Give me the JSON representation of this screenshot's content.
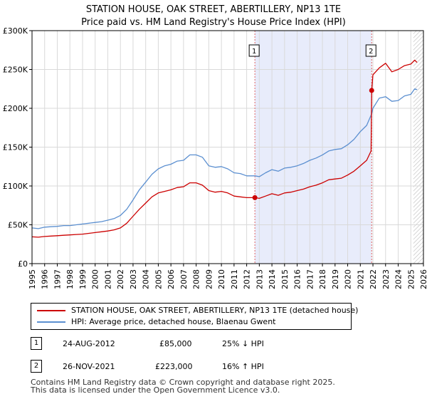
{
  "title_line1": "STATION HOUSE, OAK STREET, ABERTILLERY, NP13 1TE",
  "title_line2": "Price paid vs. HM Land Registry's House Price Index (HPI)",
  "colors": {
    "property": "#cc0000",
    "hpi": "#5b8fd0",
    "shade": "#e8ecfb",
    "grid": "#d9d9d9",
    "marker_line": "#e06666"
  },
  "chart_data": {
    "type": "line",
    "title": "Price paid vs. HM Land Registry's House Price Index (HPI)",
    "xlabel": "",
    "ylabel": "",
    "xlim": [
      1995,
      2026
    ],
    "ylim": [
      0,
      300000
    ],
    "y_ticks": [
      0,
      50000,
      100000,
      150000,
      200000,
      250000,
      300000
    ],
    "y_tick_labels": [
      "£0",
      "£50K",
      "£100K",
      "£150K",
      "£200K",
      "£250K",
      "£300K"
    ],
    "x_ticks": [
      "1995",
      "1996",
      "1997",
      "1998",
      "1999",
      "2000",
      "2001",
      "2002",
      "2003",
      "2004",
      "2005",
      "2006",
      "2007",
      "2008",
      "2009",
      "2010",
      "2011",
      "2012",
      "2013",
      "2014",
      "2015",
      "2016",
      "2017",
      "2018",
      "2019",
      "2020",
      "2021",
      "2022",
      "2023",
      "2024",
      "2025",
      "2026"
    ],
    "grid": true,
    "shaded_range": [
      2012.65,
      2021.9
    ],
    "hatched_from": 2025.2,
    "series": [
      {
        "name": "HPI: Average price, detached house, Blaenau Gwent",
        "x": [
          1995.0,
          1995.5,
          1996.0,
          1996.5,
          1997.0,
          1997.5,
          1998.0,
          1998.5,
          1999.0,
          1999.5,
          2000.0,
          2000.5,
          2001.0,
          2001.5,
          2002.0,
          2002.5,
          2003.0,
          2003.5,
          2004.0,
          2004.5,
          2005.0,
          2005.5,
          2006.0,
          2006.5,
          2007.0,
          2007.5,
          2008.0,
          2008.5,
          2009.0,
          2009.5,
          2010.0,
          2010.5,
          2011.0,
          2011.5,
          2012.0,
          2012.5,
          2012.65,
          2013.0,
          2013.5,
          2014.0,
          2014.5,
          2015.0,
          2015.5,
          2016.0,
          2016.5,
          2017.0,
          2017.5,
          2018.0,
          2018.5,
          2019.0,
          2019.5,
          2020.0,
          2020.5,
          2021.0,
          2021.5,
          2021.9,
          2022.0,
          2022.5,
          2023.0,
          2023.5,
          2024.0,
          2024.5,
          2025.0,
          2025.3,
          2025.5
        ],
        "values": [
          46000,
          45000,
          47000,
          47500,
          48000,
          49000,
          49000,
          50000,
          51000,
          52000,
          53000,
          54000,
          56000,
          58000,
          62000,
          70000,
          82000,
          95000,
          105000,
          115000,
          122000,
          126000,
          128000,
          132000,
          133000,
          140000,
          140000,
          137000,
          126000,
          124000,
          125000,
          122000,
          117000,
          116000,
          113000,
          113000,
          113000,
          112000,
          117000,
          121000,
          119000,
          123000,
          124000,
          126000,
          129000,
          133000,
          136000,
          140000,
          145000,
          147000,
          148000,
          153000,
          160000,
          170000,
          178000,
          193000,
          200000,
          213000,
          215000,
          209000,
          210000,
          216000,
          218000,
          225000,
          224000
        ]
      },
      {
        "name": "STATION HOUSE, OAK STREET, ABERTILLERY, NP13 1TE (detached house)",
        "x": [
          1995.0,
          1995.5,
          1996.0,
          1996.5,
          1997.0,
          1997.5,
          1998.0,
          1998.5,
          1999.0,
          1999.5,
          2000.0,
          2000.5,
          2001.0,
          2001.5,
          2002.0,
          2002.5,
          2003.0,
          2003.5,
          2004.0,
          2004.5,
          2005.0,
          2005.5,
          2006.0,
          2006.5,
          2007.0,
          2007.5,
          2008.0,
          2008.5,
          2009.0,
          2009.5,
          2010.0,
          2010.5,
          2011.0,
          2011.5,
          2012.0,
          2012.5,
          2012.65,
          2013.0,
          2013.5,
          2014.0,
          2014.5,
          2015.0,
          2015.5,
          2016.0,
          2016.5,
          2017.0,
          2017.5,
          2018.0,
          2018.5,
          2019.0,
          2019.5,
          2020.0,
          2020.5,
          2021.0,
          2021.5,
          2021.85,
          2021.9,
          2022.0,
          2022.5,
          2023.0,
          2023.5,
          2024.0,
          2024.5,
          2025.0,
          2025.3,
          2025.5
        ],
        "values": [
          34500,
          34000,
          35000,
          35500,
          36000,
          36500,
          37000,
          37500,
          38000,
          39000,
          40000,
          41000,
          42000,
          43500,
          46000,
          52000,
          61000,
          70000,
          78000,
          86000,
          91000,
          93000,
          95000,
          98000,
          99000,
          104000,
          104000,
          101000,
          94000,
          92000,
          93000,
          91000,
          87000,
          86000,
          85000,
          85000,
          85000,
          84000,
          87000,
          90000,
          88000,
          91000,
          92000,
          94000,
          96000,
          99000,
          101000,
          104000,
          108000,
          109000,
          110000,
          114000,
          119000,
          126000,
          133000,
          145000,
          223000,
          243000,
          252000,
          258000,
          247000,
          250000,
          255000,
          257000,
          262000,
          259000
        ]
      }
    ],
    "annotations": [
      {
        "label": "1",
        "x": 2012.65,
        "y": 85000
      },
      {
        "label": "2",
        "x": 2021.9,
        "y": 223000
      }
    ]
  },
  "legend": {
    "property_label": "STATION HOUSE, OAK STREET, ABERTILLERY, NP13 1TE (detached house)",
    "hpi_label": "HPI: Average price, detached house, Blaenau Gwent"
  },
  "sales": [
    {
      "num": "1",
      "date": "24-AUG-2012",
      "price": "£85,000",
      "hpi": "25% ↓ HPI"
    },
    {
      "num": "2",
      "date": "26-NOV-2021",
      "price": "£223,000",
      "hpi": "16% ↑ HPI"
    }
  ],
  "footer_line1": "Contains HM Land Registry data © Crown copyright and database right 2025.",
  "footer_line2": "This data is licensed under the Open Government Licence v3.0."
}
